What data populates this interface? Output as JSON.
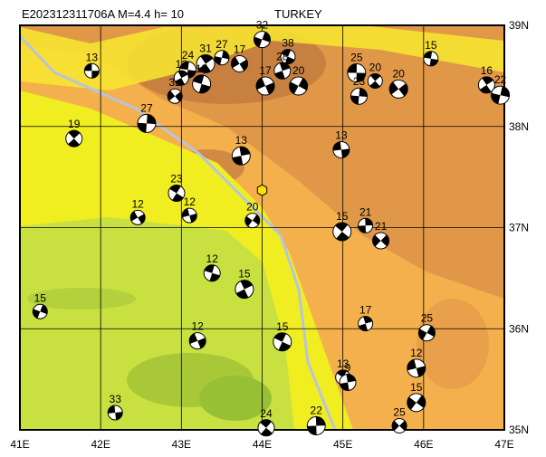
{
  "header": {
    "title": "E202312311706A M=4.4 h= 10",
    "region": "TURKEY"
  },
  "map": {
    "lon_range": [
      41,
      47
    ],
    "lat_range": [
      35,
      39
    ],
    "x_ticks": [
      {
        "value": 41,
        "label": "41E"
      },
      {
        "value": 42,
        "label": "42E"
      },
      {
        "value": 43,
        "label": "43E"
      },
      {
        "value": 44,
        "label": "44E"
      },
      {
        "value": 45,
        "label": "45E"
      },
      {
        "value": 46,
        "label": "46E"
      },
      {
        "value": 47,
        "label": "47E"
      }
    ],
    "y_ticks": [
      {
        "value": 35,
        "label": "35N"
      },
      {
        "value": 36,
        "label": "36N"
      },
      {
        "value": 37,
        "label": "37N"
      },
      {
        "value": 38,
        "label": "38N"
      },
      {
        "value": 39,
        "label": "39N"
      }
    ],
    "epicenter": {
      "lon": 44.0,
      "lat": 37.37
    },
    "events": [
      {
        "label": "13",
        "lon": 41.89,
        "lat": 38.55
      },
      {
        "label": "19",
        "lon": 41.67,
        "lat": 37.88
      },
      {
        "label": "27",
        "lon": 42.57,
        "lat": 38.03
      },
      {
        "label": "32",
        "lon": 42.92,
        "lat": 38.3
      },
      {
        "label": "24",
        "lon": 43.08,
        "lat": 38.56
      },
      {
        "label": "31",
        "lon": 43.3,
        "lat": 38.62
      },
      {
        "label": "27",
        "lon": 43.5,
        "lat": 38.68
      },
      {
        "label": "17",
        "lon": 43.72,
        "lat": 38.62
      },
      {
        "label": "15",
        "lon": 43.25,
        "lat": 38.42
      },
      {
        "label": "12",
        "lon": 43.0,
        "lat": 38.48
      },
      {
        "label": "32",
        "lon": 44.0,
        "lat": 38.86
      },
      {
        "label": "17",
        "lon": 44.04,
        "lat": 38.4
      },
      {
        "label": "38",
        "lon": 44.32,
        "lat": 38.69
      },
      {
        "label": "28",
        "lon": 44.25,
        "lat": 38.55
      },
      {
        "label": "20",
        "lon": 44.45,
        "lat": 38.4
      },
      {
        "label": "12",
        "lon": 43.1,
        "lat": 37.12
      },
      {
        "label": "23",
        "lon": 42.94,
        "lat": 37.34
      },
      {
        "label": "13",
        "lon": 43.74,
        "lat": 37.71
      },
      {
        "label": "20",
        "lon": 43.88,
        "lat": 37.07
      },
      {
        "label": "13",
        "lon": 44.98,
        "lat": 37.77
      },
      {
        "label": "15",
        "lon": 44.99,
        "lat": 36.96
      },
      {
        "label": "21",
        "lon": 45.28,
        "lat": 37.02
      },
      {
        "label": "21",
        "lon": 45.47,
        "lat": 36.87
      },
      {
        "label": "25",
        "lon": 45.17,
        "lat": 38.53
      },
      {
        "label": "20",
        "lon": 45.4,
        "lat": 38.45
      },
      {
        "label": "23",
        "lon": 45.2,
        "lat": 38.3
      },
      {
        "label": "20",
        "lon": 45.69,
        "lat": 38.37
      },
      {
        "label": "15",
        "lon": 46.09,
        "lat": 38.67
      },
      {
        "label": "16",
        "lon": 46.78,
        "lat": 38.41
      },
      {
        "label": "22",
        "lon": 46.95,
        "lat": 38.31
      },
      {
        "label": "12",
        "lon": 42.46,
        "lat": 37.1
      },
      {
        "label": "12",
        "lon": 43.38,
        "lat": 36.55
      },
      {
        "label": "15",
        "lon": 43.78,
        "lat": 36.39
      },
      {
        "label": "15",
        "lon": 41.25,
        "lat": 36.17
      },
      {
        "label": "12",
        "lon": 43.2,
        "lat": 35.88
      },
      {
        "label": "15",
        "lon": 44.25,
        "lat": 35.87
      },
      {
        "label": "17",
        "lon": 45.28,
        "lat": 36.05
      },
      {
        "label": "25",
        "lon": 46.04,
        "lat": 35.96
      },
      {
        "label": "12",
        "lon": 45.91,
        "lat": 35.61
      },
      {
        "label": "13",
        "lon": 45.0,
        "lat": 35.52
      },
      {
        "label": "9",
        "lon": 45.06,
        "lat": 35.47
      },
      {
        "label": "15",
        "lon": 45.91,
        "lat": 35.27
      },
      {
        "label": "33",
        "lon": 42.18,
        "lat": 35.17
      },
      {
        "label": "24",
        "lon": 44.05,
        "lat": 35.02
      },
      {
        "label": "22",
        "lon": 44.67,
        "lat": 35.04
      },
      {
        "label": "25",
        "lon": 45.7,
        "lat": 35.04
      }
    ]
  }
}
